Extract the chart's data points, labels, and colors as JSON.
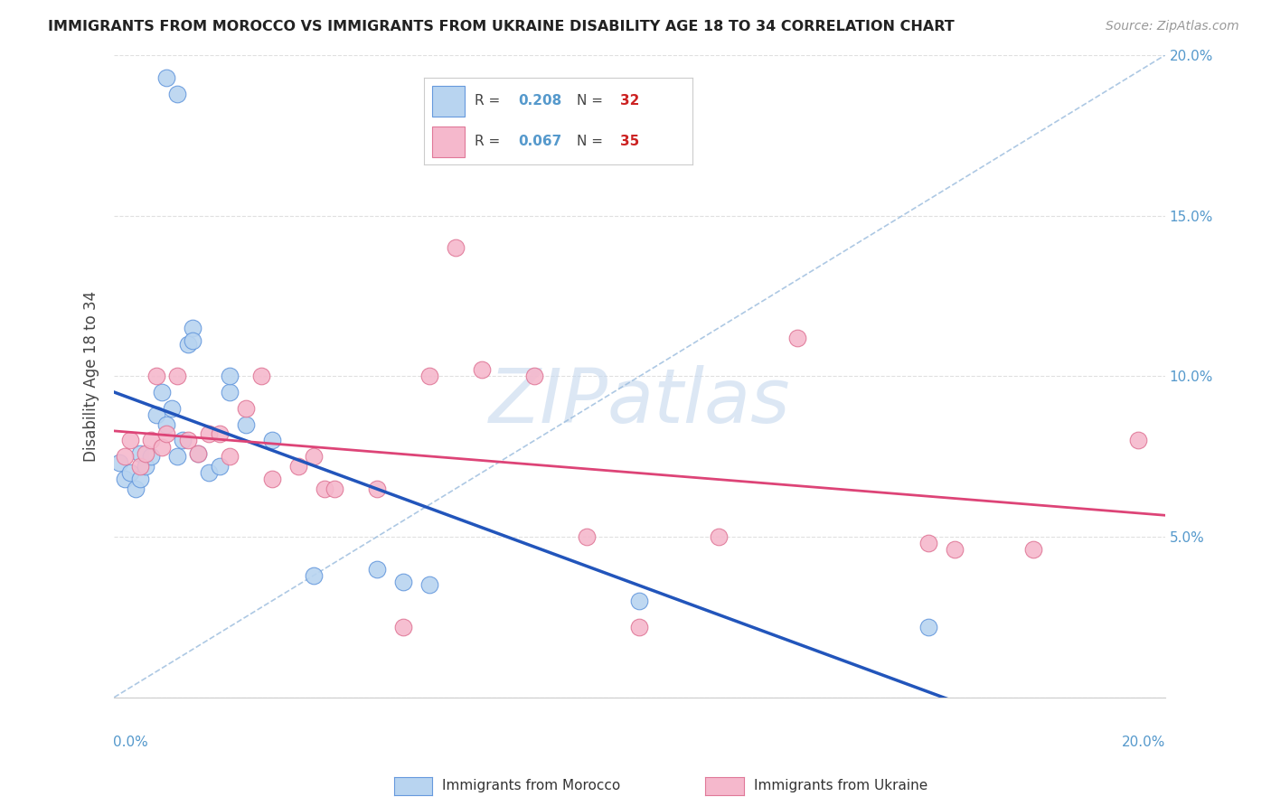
{
  "title": "IMMIGRANTS FROM MOROCCO VS IMMIGRANTS FROM UKRAINE DISABILITY AGE 18 TO 34 CORRELATION CHART",
  "source": "Source: ZipAtlas.com",
  "ylabel": "Disability Age 18 to 34",
  "xlim": [
    0.0,
    0.2
  ],
  "ylim": [
    0.0,
    0.2
  ],
  "morocco_color": "#b8d4f0",
  "morocco_edge_color": "#6699dd",
  "ukraine_color": "#f5b8cc",
  "ukraine_edge_color": "#e07898",
  "morocco_line_color": "#2255bb",
  "ukraine_line_color": "#dd4477",
  "dashed_line_color": "#99bbdd",
  "morocco_R": 0.208,
  "morocco_N": 32,
  "ukraine_R": 0.067,
  "ukraine_N": 35,
  "watermark_text": "ZIPatlas",
  "watermark_color": "#c5d8ee",
  "background_color": "#ffffff",
  "grid_color": "#e0e0e0",
  "right_axis_color": "#5599cc",
  "legend_border_color": "#cccccc",
  "morocco_label": "Immigrants from Morocco",
  "ukraine_label": "Immigrants from Ukraine",
  "morocco_x": [
    0.001,
    0.002,
    0.003,
    0.004,
    0.005,
    0.005,
    0.006,
    0.007,
    0.008,
    0.009,
    0.01,
    0.011,
    0.012,
    0.013,
    0.014,
    0.015,
    0.016,
    0.018,
    0.02,
    0.022,
    0.025,
    0.03,
    0.038,
    0.01,
    0.012,
    0.015,
    0.022,
    0.05,
    0.055,
    0.06,
    0.1,
    0.155
  ],
  "morocco_y": [
    0.073,
    0.068,
    0.07,
    0.065,
    0.068,
    0.076,
    0.072,
    0.075,
    0.088,
    0.095,
    0.085,
    0.09,
    0.075,
    0.08,
    0.11,
    0.115,
    0.076,
    0.07,
    0.072,
    0.095,
    0.085,
    0.08,
    0.038,
    0.193,
    0.188,
    0.111,
    0.1,
    0.04,
    0.036,
    0.035,
    0.03,
    0.022
  ],
  "ukraine_x": [
    0.002,
    0.003,
    0.005,
    0.006,
    0.007,
    0.008,
    0.009,
    0.01,
    0.012,
    0.014,
    0.016,
    0.018,
    0.02,
    0.022,
    0.025,
    0.028,
    0.03,
    0.035,
    0.038,
    0.04,
    0.042,
    0.05,
    0.055,
    0.065,
    0.08,
    0.09,
    0.1,
    0.115,
    0.13,
    0.155,
    0.16,
    0.175,
    0.06,
    0.07,
    0.195
  ],
  "ukraine_y": [
    0.075,
    0.08,
    0.072,
    0.076,
    0.08,
    0.1,
    0.078,
    0.082,
    0.1,
    0.08,
    0.076,
    0.082,
    0.082,
    0.075,
    0.09,
    0.1,
    0.068,
    0.072,
    0.075,
    0.065,
    0.065,
    0.065,
    0.022,
    0.14,
    0.1,
    0.05,
    0.022,
    0.05,
    0.112,
    0.048,
    0.046,
    0.046,
    0.1,
    0.102,
    0.08
  ]
}
